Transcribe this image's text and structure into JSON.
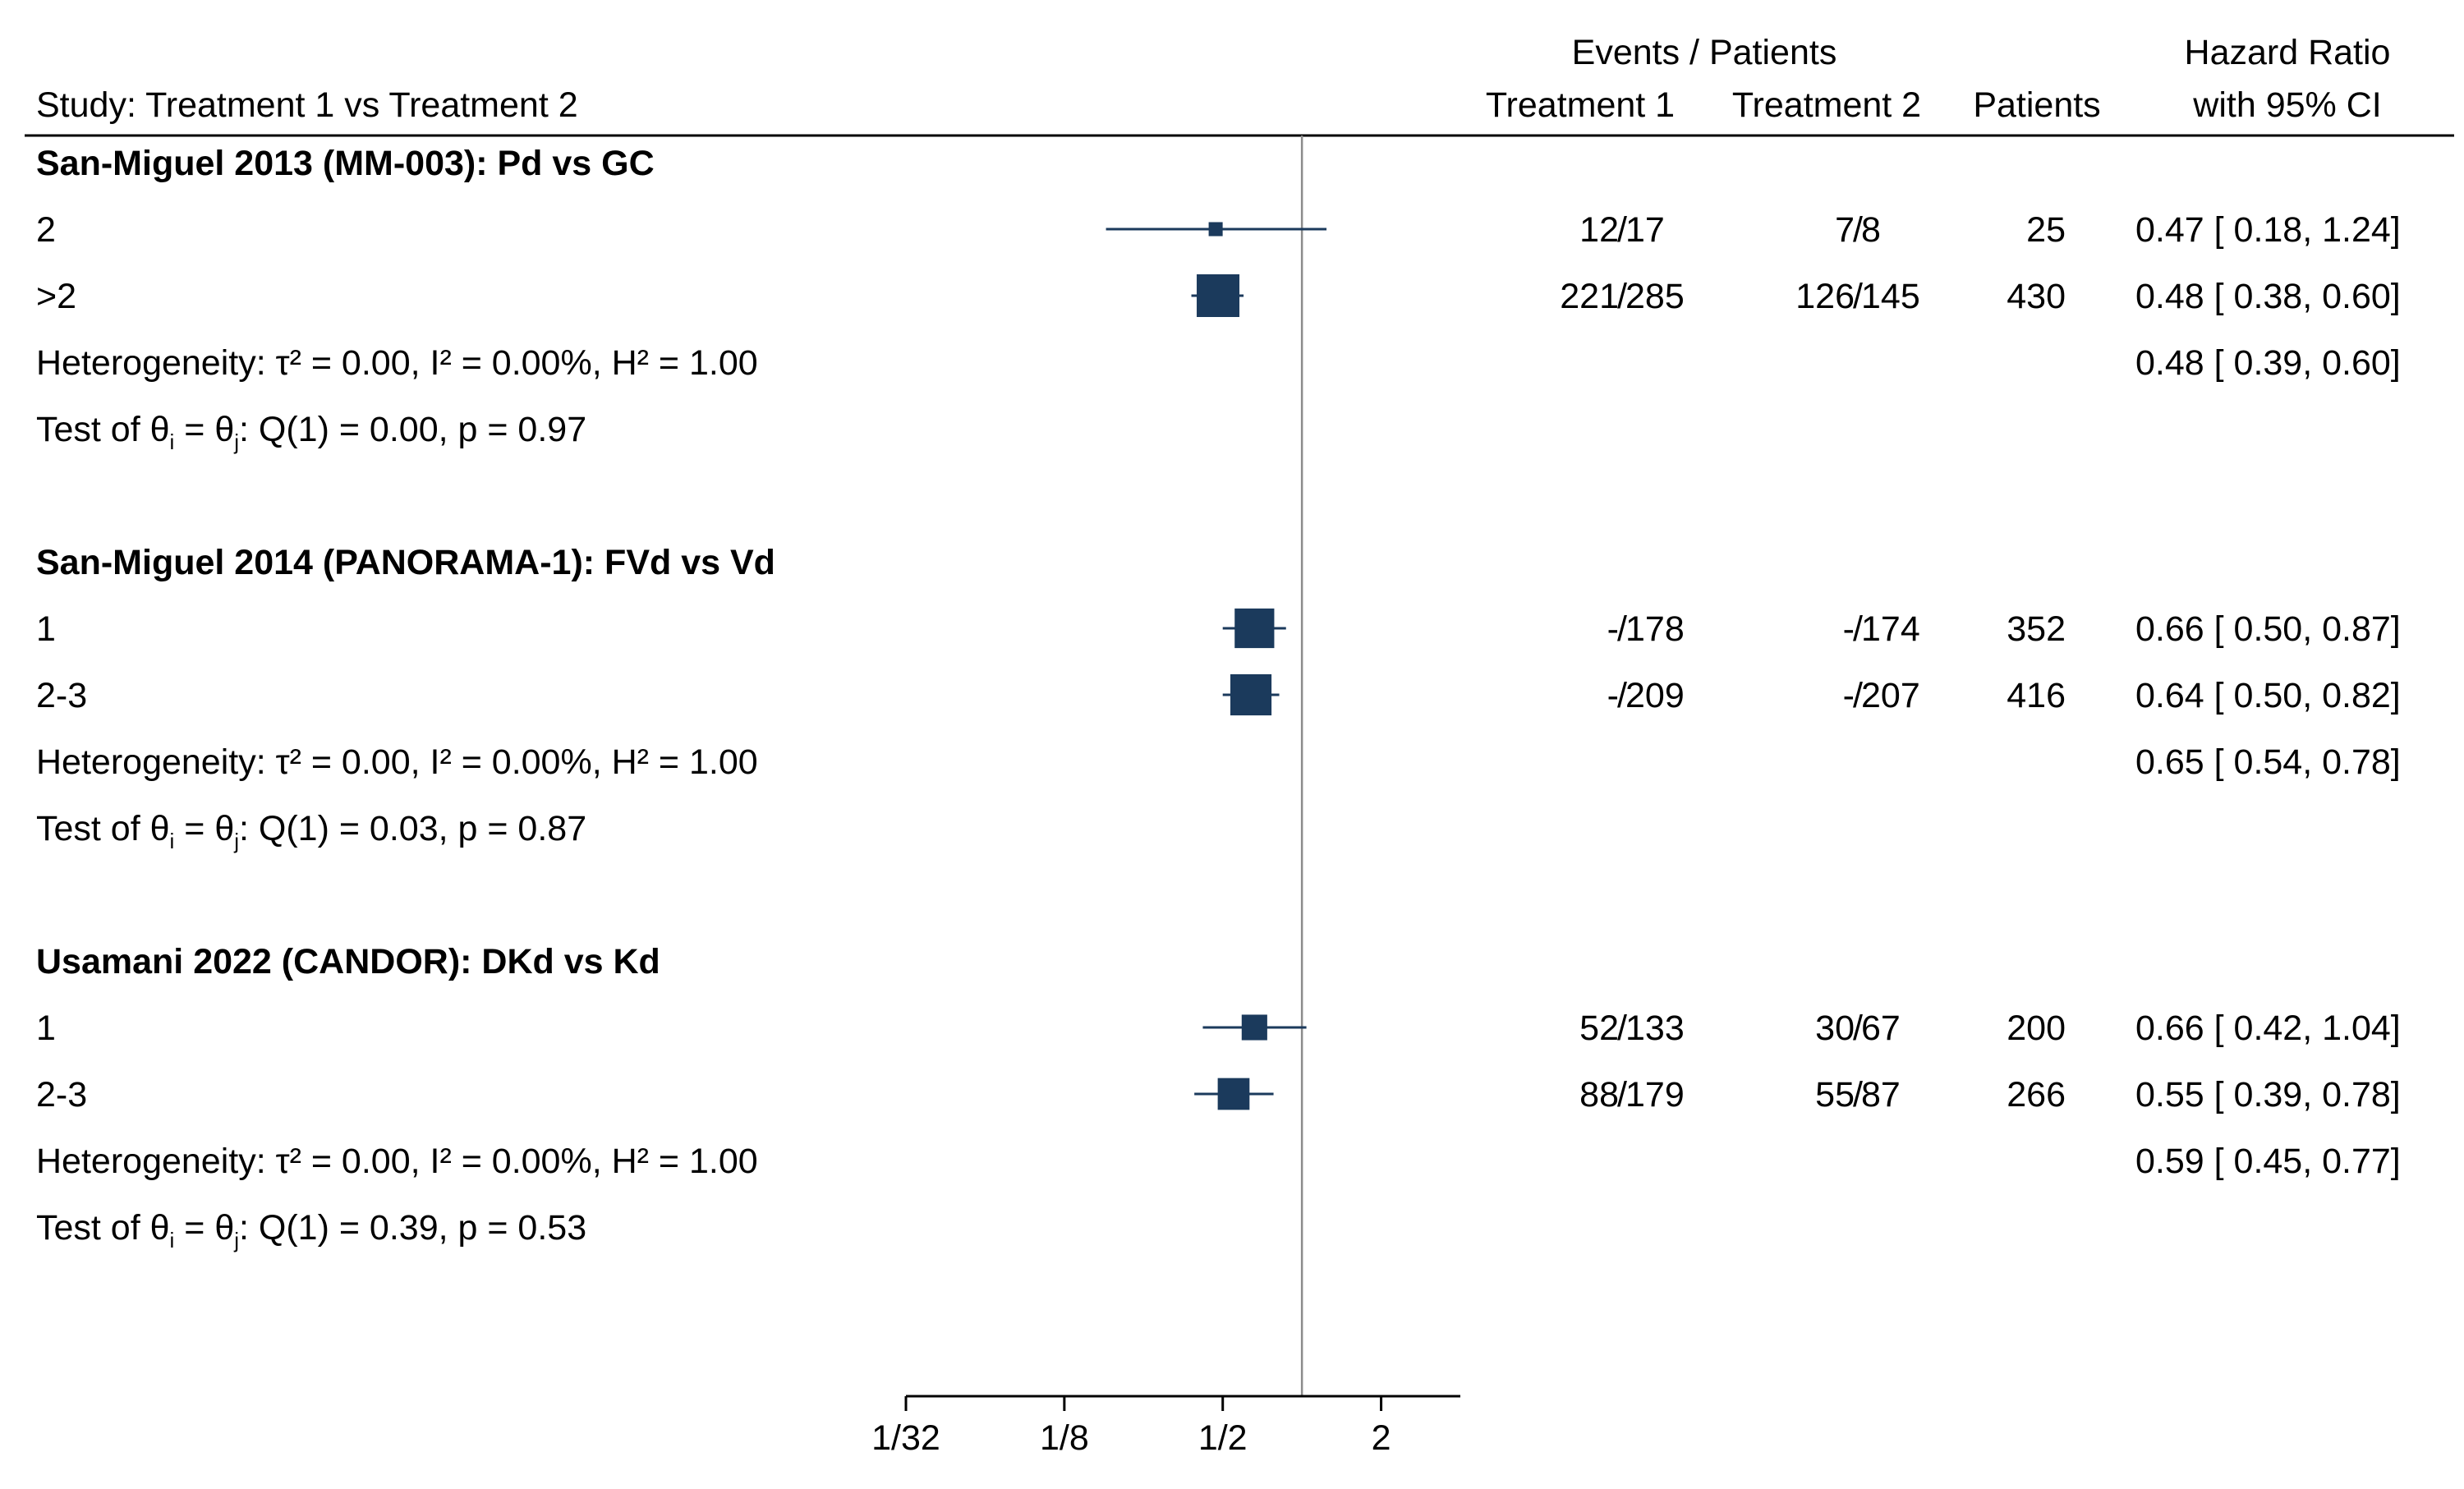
{
  "header": {
    "study_label": "Study: Treatment 1 vs Treatment 2",
    "events_patients": "Events / Patients",
    "treatment1": "Treatment 1",
    "treatment2": "Treatment 2",
    "patients": "Patients",
    "hr_line1": "Hazard Ratio",
    "hr_line2": "with 95% CI"
  },
  "colors": {
    "marker": "#1b3a5c",
    "reference_line": "#8c8c8c",
    "text": "#000000"
  },
  "chart_data": {
    "type": "forest",
    "xscale": "log2",
    "xlim": [
      0.03125,
      4
    ],
    "reference_line": 1,
    "xticks": [
      {
        "value": 0.03125,
        "label": "1/32"
      },
      {
        "value": 0.125,
        "label": "1/8"
      },
      {
        "value": 0.5,
        "label": "1/2"
      },
      {
        "value": 2,
        "label": "2"
      }
    ],
    "groups": [
      {
        "title": "San-Miguel 2013 (MM-003): Pd vs GC",
        "rows": [
          {
            "label": "2",
            "events1": "12",
            "n1": "17",
            "events2": "7",
            "n2": "8",
            "patients": "25",
            "hr": 0.47,
            "lo": 0.18,
            "hi": 1.24,
            "weight": 0.08,
            "ci_text": "0.47 [ 0.18,  1.24]"
          },
          {
            "label": ">2",
            "events1": "221",
            "n1": "285",
            "events2": "126",
            "n2": "145",
            "patients": "430",
            "hr": 0.48,
            "lo": 0.38,
            "hi": 0.6,
            "weight": 1.0,
            "ci_text": "0.48 [ 0.38,  0.60]"
          }
        ],
        "heterogeneity": {
          "prefix": "Heterogeneity: τ² = 0.00, I² = 0.00%, H² = 1.00",
          "ci_text": "0.48 [ 0.39,  0.60]"
        },
        "test": {
          "stat": ": Q(1) = 0.00, p = 0.97"
        }
      },
      {
        "title": "San-Miguel 2014 (PANORAMA-1): FVd vs Vd",
        "rows": [
          {
            "label": "1",
            "events1": "-",
            "n1": "178",
            "events2": "-",
            "n2": "174",
            "patients": "352",
            "hr": 0.66,
            "lo": 0.5,
            "hi": 0.87,
            "weight": 0.9,
            "ci_text": "0.66 [ 0.50,  0.87]"
          },
          {
            "label": "2-3",
            "events1": "-",
            "n1": "209",
            "events2": "-",
            "n2": "207",
            "patients": "416",
            "hr": 0.64,
            "lo": 0.5,
            "hi": 0.82,
            "weight": 0.95,
            "ci_text": "0.64 [ 0.50,  0.82]"
          }
        ],
        "heterogeneity": {
          "prefix": "Heterogeneity: τ² = 0.00, I² = 0.00%, H² = 1.00",
          "ci_text": "0.65 [ 0.54,  0.78]"
        },
        "test": {
          "stat": ": Q(1) = 0.03, p = 0.87"
        }
      },
      {
        "title": "Usamani 2022 (CANDOR): DKd vs Kd",
        "rows": [
          {
            "label": "1",
            "events1": "52",
            "n1": "133",
            "events2": "30",
            "n2": "67",
            "patients": "200",
            "hr": 0.66,
            "lo": 0.42,
            "hi": 1.04,
            "weight": 0.45,
            "ci_text": "0.66 [ 0.42,  1.04]"
          },
          {
            "label": "2-3",
            "events1": "88",
            "n1": "179",
            "events2": "55",
            "n2": "87",
            "patients": "266",
            "hr": 0.55,
            "lo": 0.39,
            "hi": 0.78,
            "weight": 0.65,
            "ci_text": "0.55 [ 0.39,  0.78]"
          }
        ],
        "heterogeneity": {
          "prefix": "Heterogeneity: τ² = 0.00, I² = 0.00%, H² = 1.00",
          "ci_text": "0.59 [ 0.45,  0.77]"
        },
        "test": {
          "stat": ": Q(1) = 0.39, p = 0.53"
        }
      }
    ]
  }
}
